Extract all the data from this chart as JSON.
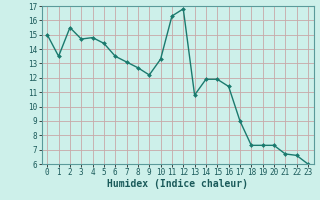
{
  "x": [
    0,
    1,
    2,
    3,
    4,
    5,
    6,
    7,
    8,
    9,
    10,
    11,
    12,
    13,
    14,
    15,
    16,
    17,
    18,
    19,
    20,
    21,
    22,
    23
  ],
  "y": [
    15.0,
    13.5,
    15.5,
    14.7,
    14.8,
    14.4,
    13.5,
    13.1,
    12.7,
    12.2,
    13.3,
    16.3,
    16.8,
    10.8,
    11.9,
    11.9,
    11.4,
    9.0,
    7.3,
    7.3,
    7.3,
    6.7,
    6.6,
    6.0
  ],
  "line_color": "#1a7a6e",
  "marker": "D",
  "marker_size": 2.0,
  "bg_color": "#cdf0ea",
  "grid_color": "#c8a8a8",
  "xlabel": "Humidex (Indice chaleur)",
  "xlim": [
    -0.5,
    23.5
  ],
  "ylim": [
    6,
    17
  ],
  "yticks": [
    6,
    7,
    8,
    9,
    10,
    11,
    12,
    13,
    14,
    15,
    16,
    17
  ],
  "xticks": [
    0,
    1,
    2,
    3,
    4,
    5,
    6,
    7,
    8,
    9,
    10,
    11,
    12,
    13,
    14,
    15,
    16,
    17,
    18,
    19,
    20,
    21,
    22,
    23
  ],
  "tick_label_fontsize": 5.5,
  "xlabel_fontsize": 7.0,
  "line_width": 1.0
}
